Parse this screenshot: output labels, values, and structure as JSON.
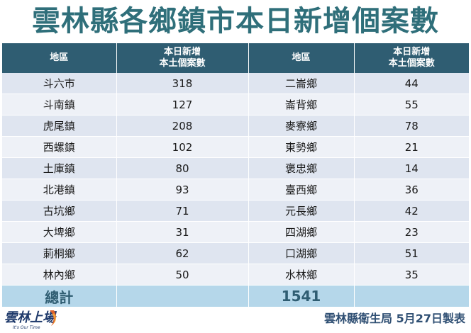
{
  "title": "雲林縣各鄉鎮市本日新增個案數",
  "header": {
    "col1": "地區",
    "col2_line1": "本日新增",
    "col2_line2": "本土個案數",
    "col3": "地區",
    "col4_line1": "本日新增",
    "col4_line2": "本土個案數"
  },
  "rows": [
    {
      "area_left": "斗六市",
      "count_left": "318",
      "area_right": "二崙鄉",
      "count_right": "44"
    },
    {
      "area_left": "斗南鎮",
      "count_left": "127",
      "area_right": "崙背鄉",
      "count_right": "55"
    },
    {
      "area_left": "虎尾鎮",
      "count_left": "208",
      "area_right": "麥寮鄉",
      "count_right": "78"
    },
    {
      "area_left": "西螺鎮",
      "count_left": "102",
      "area_right": "東勢鄉",
      "count_right": "21"
    },
    {
      "area_left": "土庫鎮",
      "count_left": "80",
      "area_right": "褒忠鄉",
      "count_right": "14"
    },
    {
      "area_left": "北港鎮",
      "count_left": "93",
      "area_right": "臺西鄉",
      "count_right": "36"
    },
    {
      "area_left": "古坑鄉",
      "count_left": "71",
      "area_right": "元長鄉",
      "count_right": "42"
    },
    {
      "area_left": "大埤鄉",
      "count_left": "31",
      "area_right": "四湖鄉",
      "count_right": "23"
    },
    {
      "area_left": "莿桐鄉",
      "count_left": "62",
      "area_right": "口湖鄉",
      "count_right": "51"
    },
    {
      "area_left": "林內鄉",
      "count_left": "50",
      "area_right": "水林鄉",
      "count_right": "35"
    }
  ],
  "total": {
    "label": "總計",
    "value": "1541"
  },
  "footer": "雲林縣衛生局  5月27日製表",
  "logo": {
    "text": "雲林上場",
    "subtext": "It's Our Time"
  },
  "colors": {
    "title": "#2f6f7a",
    "header_bg": "#2f5d72",
    "row_odd": "#dfe5f0",
    "row_even": "#eef1f7",
    "total_bg": "#b5d7ea"
  }
}
